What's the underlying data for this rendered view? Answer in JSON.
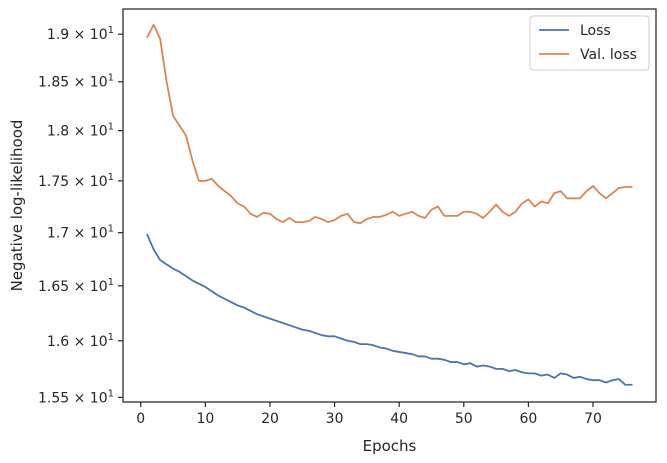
{
  "chart_data": {
    "type": "line",
    "xlabel": "Epochs",
    "ylabel": "Negative log-likelihood",
    "yscale": "log",
    "xlim": [
      -2.75,
      79.75
    ],
    "ylim": [
      15.46,
      19.27
    ],
    "grid": false,
    "legend_position": "top-right",
    "x_ticks": [
      0,
      10,
      20,
      30,
      40,
      50,
      60,
      70
    ],
    "x_tick_labels": [
      "0",
      "10",
      "20",
      "30",
      "40",
      "50",
      "60",
      "70"
    ],
    "y_ticks": [
      {
        "value": 15.5,
        "mantissa": "1.55",
        "base": "10",
        "exp": "1"
      },
      {
        "value": 16.0,
        "mantissa": "1.6",
        "base": "10",
        "exp": "1"
      },
      {
        "value": 16.5,
        "mantissa": "1.65",
        "base": "10",
        "exp": "1"
      },
      {
        "value": 17.0,
        "mantissa": "1.7",
        "base": "10",
        "exp": "1"
      },
      {
        "value": 17.5,
        "mantissa": "1.75",
        "base": "10",
        "exp": "1"
      },
      {
        "value": 18.0,
        "mantissa": "1.8",
        "base": "10",
        "exp": "1"
      },
      {
        "value": 18.5,
        "mantissa": "1.85",
        "base": "10",
        "exp": "1"
      },
      {
        "value": 19.0,
        "mantissa": "1.9",
        "base": "10",
        "exp": "1"
      }
    ],
    "times_symbol": "×",
    "x": [
      1,
      2,
      3,
      4,
      5,
      6,
      7,
      8,
      9,
      10,
      11,
      12,
      13,
      14,
      15,
      16,
      17,
      18,
      19,
      20,
      21,
      22,
      23,
      24,
      25,
      26,
      27,
      28,
      29,
      30,
      31,
      32,
      33,
      34,
      35,
      36,
      37,
      38,
      39,
      40,
      41,
      42,
      43,
      44,
      45,
      46,
      47,
      48,
      49,
      50,
      51,
      52,
      53,
      54,
      55,
      56,
      57,
      58,
      59,
      60,
      61,
      62,
      63,
      64,
      65,
      66,
      67,
      68,
      69,
      70,
      71,
      72,
      73,
      74,
      75,
      76
    ],
    "series": [
      {
        "name": "Loss",
        "color": "#4c72b0",
        "values": [
          16.98,
          16.84,
          16.74,
          16.7,
          16.66,
          16.63,
          16.59,
          16.55,
          16.52,
          16.49,
          16.45,
          16.41,
          16.38,
          16.35,
          16.32,
          16.3,
          16.27,
          16.24,
          16.22,
          16.2,
          16.18,
          16.16,
          16.14,
          16.12,
          16.1,
          16.09,
          16.07,
          16.05,
          16.04,
          16.04,
          16.02,
          16.0,
          15.99,
          15.97,
          15.97,
          15.96,
          15.94,
          15.93,
          15.91,
          15.9,
          15.89,
          15.88,
          15.86,
          15.86,
          15.84,
          15.84,
          15.83,
          15.81,
          15.81,
          15.79,
          15.8,
          15.77,
          15.78,
          15.77,
          15.75,
          15.75,
          15.73,
          15.74,
          15.72,
          15.71,
          15.71,
          15.69,
          15.7,
          15.67,
          15.71,
          15.7,
          15.67,
          15.68,
          15.66,
          15.65,
          15.65,
          15.63,
          15.65,
          15.66,
          15.61,
          15.61
        ]
      },
      {
        "name": "Val. loss",
        "color": "#dd8452",
        "values": [
          18.97,
          19.1,
          18.95,
          18.5,
          18.15,
          18.05,
          17.95,
          17.7,
          17.5,
          17.5,
          17.52,
          17.45,
          17.4,
          17.35,
          17.28,
          17.25,
          17.18,
          17.15,
          17.19,
          17.18,
          17.13,
          17.1,
          17.14,
          17.1,
          17.1,
          17.11,
          17.15,
          17.13,
          17.1,
          17.12,
          17.16,
          17.18,
          17.1,
          17.09,
          17.13,
          17.15,
          17.15,
          17.17,
          17.2,
          17.16,
          17.18,
          17.2,
          17.16,
          17.14,
          17.22,
          17.25,
          17.16,
          17.16,
          17.16,
          17.2,
          17.2,
          17.18,
          17.14,
          17.2,
          17.27,
          17.2,
          17.16,
          17.2,
          17.28,
          17.32,
          17.25,
          17.3,
          17.28,
          17.38,
          17.4,
          17.33,
          17.33,
          17.33,
          17.4,
          17.45,
          17.38,
          17.33,
          17.38,
          17.43,
          17.44,
          17.44
        ]
      }
    ]
  }
}
